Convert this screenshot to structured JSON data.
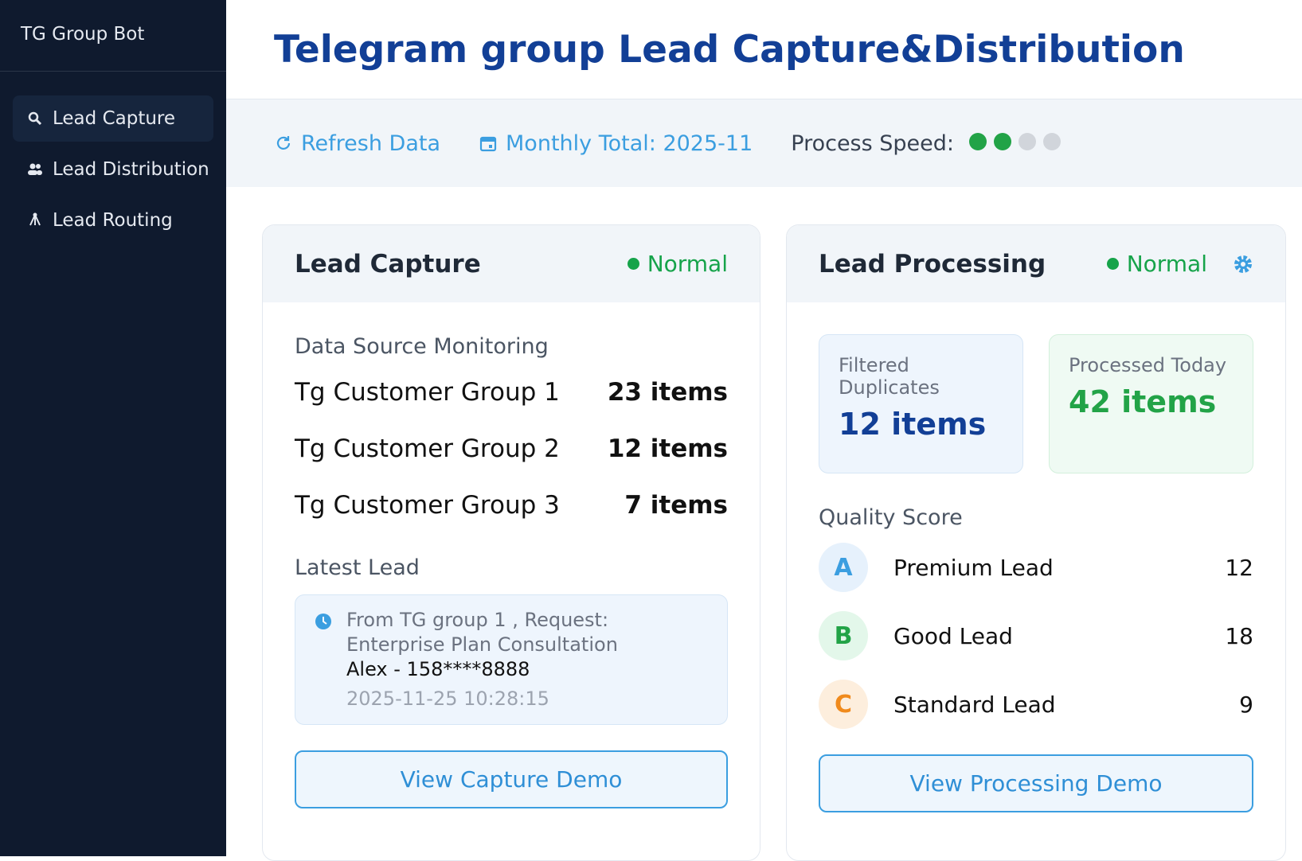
{
  "sidebar": {
    "brand": "TG Group Bot",
    "nav": [
      {
        "label": "Lead Capture"
      },
      {
        "label": "Lead Distribution"
      },
      {
        "label": "Lead Routing"
      }
    ]
  },
  "header": {
    "title": "Telegram group Lead Capture&Distribution"
  },
  "toolbar": {
    "refresh": "Refresh Data",
    "monthly": "Monthly Total: 2025-11",
    "speed_label": "Process Speed:",
    "speed_level": 2,
    "speed_max": 4
  },
  "capture_card": {
    "title": "Lead Capture",
    "status": "Normal",
    "source_heading": "Data Source Monitoring",
    "sources": [
      {
        "name": "Tg Customer Group 1",
        "count": "23 items"
      },
      {
        "name": "Tg Customer Group 2",
        "count": "12 items"
      },
      {
        "name": "Tg Customer Group 3",
        "count": "7 items"
      }
    ],
    "latest_heading": "Latest Lead",
    "latest": {
      "text": "From TG group 1 , Request: Enterprise Plan Consultation",
      "contact": "Alex - 158****8888",
      "time": "2025-11-25 10:28:15"
    },
    "button": "View Capture Demo"
  },
  "processing_card": {
    "title": "Lead Processing",
    "status": "Normal",
    "stats": [
      {
        "label": "Filtered Duplicates",
        "value": "12 items"
      },
      {
        "label": "Processed Today",
        "value": "42 items"
      }
    ],
    "quality_heading": "Quality Score",
    "grades": [
      {
        "grade": "A",
        "label": "Premium Lead",
        "count": 12
      },
      {
        "grade": "B",
        "label": "Good Lead",
        "count": 18
      },
      {
        "grade": "C",
        "label": "Standard Lead",
        "count": 9
      }
    ],
    "button": "View Processing Demo"
  }
}
